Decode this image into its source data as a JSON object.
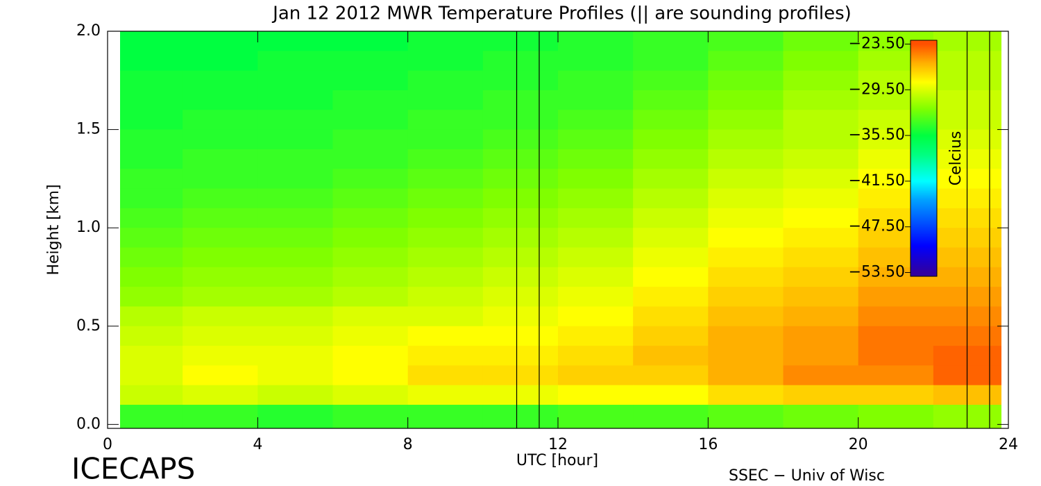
{
  "chart_data": {
    "type": "heatmap",
    "title": "Jan 12 2012 MWR Temperature Profiles (|| are sounding profiles)",
    "x_label": "UTC [hour]",
    "y_label": "Height [km]",
    "colorbar_label": "Celcius",
    "footer_left": "ICECAPS",
    "footer_right": "SSEC − Univ of Wisc",
    "xlim": [
      0,
      24
    ],
    "xticks": [
      0,
      4,
      8,
      12,
      16,
      20,
      24
    ],
    "ylim": [
      -0.02,
      2.0
    ],
    "yticks": [
      {
        "value": 0,
        "label": "0.0"
      },
      {
        "value": 0.5,
        "label": "0.5"
      },
      {
        "value": 1,
        "label": "1.0"
      },
      {
        "value": 1.5,
        "label": "1.5"
      },
      {
        "value": 2,
        "label": "2.0"
      }
    ],
    "clim": [
      -54,
      -23
    ],
    "cticks": [
      {
        "value": -23.5,
        "label": "−23.50"
      },
      {
        "value": -29.5,
        "label": "−29.50"
      },
      {
        "value": -35.5,
        "label": "−35.50"
      },
      {
        "value": -41.5,
        "label": "−41.50"
      },
      {
        "value": -47.5,
        "label": "−47.50"
      },
      {
        "value": -53.5,
        "label": "−53.50"
      }
    ],
    "colormap": [
      [
        -53.5,
        "#3000a0"
      ],
      [
        -50,
        "#0000ff"
      ],
      [
        -44,
        "#00a0ff"
      ],
      [
        -41.5,
        "#00ffff"
      ],
      [
        -38,
        "#00ff80"
      ],
      [
        -35.5,
        "#00ff40"
      ],
      [
        -32,
        "#80ff00"
      ],
      [
        -28.5,
        "#ffff00"
      ],
      [
        -26,
        "#ffb000"
      ],
      [
        -23.5,
        "#ff5000"
      ]
    ],
    "sounding_times": [
      10.9,
      11.5,
      22.9,
      23.5
    ],
    "x": [
      1,
      3,
      5,
      7,
      9,
      11,
      13,
      15,
      17,
      19,
      21,
      23
    ],
    "y": [
      1.95,
      1.85,
      1.75,
      1.65,
      1.55,
      1.45,
      1.35,
      1.25,
      1.15,
      1.05,
      0.95,
      0.85,
      0.75,
      0.65,
      0.55,
      0.45,
      0.35,
      0.25,
      0.15,
      0.05
    ],
    "z": [
      [
        -35.5,
        -35.5,
        -35.5,
        -35.5,
        -35,
        -35,
        -34.5,
        -34,
        -33.5,
        -32.5,
        -31.5,
        -31
      ],
      [
        -35.5,
        -35.5,
        -35,
        -35,
        -35,
        -34.5,
        -34.5,
        -34,
        -33,
        -32,
        -31,
        -30.5
      ],
      [
        -35,
        -35,
        -35,
        -35,
        -34.5,
        -34.5,
        -34,
        -33.5,
        -32.5,
        -31.5,
        -30.5,
        -30.5
      ],
      [
        -35,
        -35,
        -35,
        -34.5,
        -34.5,
        -34,
        -34,
        -33,
        -32,
        -31,
        -30.5,
        -30
      ],
      [
        -35,
        -34.5,
        -34.5,
        -34.5,
        -34,
        -34,
        -33.5,
        -32.5,
        -31.5,
        -30.5,
        -30,
        -30
      ],
      [
        -34.5,
        -34.5,
        -34.5,
        -34,
        -34,
        -33.5,
        -33,
        -32,
        -31,
        -30.5,
        -29.5,
        -29.5
      ],
      [
        -34.5,
        -34,
        -34,
        -34,
        -33.5,
        -33,
        -32.5,
        -31.5,
        -30.5,
        -30,
        -29,
        -29
      ],
      [
        -34,
        -34,
        -34,
        -33.5,
        -33,
        -32.5,
        -32,
        -31,
        -30,
        -29.5,
        -28.5,
        -28.5
      ],
      [
        -34,
        -33.5,
        -33.5,
        -33,
        -32.5,
        -32,
        -31.5,
        -30.5,
        -29.5,
        -29,
        -28,
        -28
      ],
      [
        -33.5,
        -33,
        -33,
        -32.5,
        -32,
        -31.5,
        -31,
        -30,
        -29,
        -28.5,
        -27.5,
        -27.5
      ],
      [
        -33,
        -32.5,
        -32.5,
        -32,
        -31.5,
        -31,
        -30.5,
        -29.5,
        -28.5,
        -28,
        -27,
        -27
      ],
      [
        -32.5,
        -32,
        -32,
        -31.5,
        -31,
        -30.5,
        -30,
        -29,
        -28,
        -27.5,
        -26.5,
        -26.5
      ],
      [
        -32,
        -31.5,
        -31.5,
        -31,
        -30.5,
        -30,
        -29.5,
        -28.5,
        -27.5,
        -27,
        -26,
        -26
      ],
      [
        -31.5,
        -31,
        -31,
        -30.5,
        -30,
        -29.5,
        -29,
        -28,
        -27,
        -26.5,
        -25.5,
        -25.5
      ],
      [
        -30.5,
        -30,
        -30,
        -29.5,
        -29.5,
        -29,
        -28.5,
        -27.5,
        -26.5,
        -26,
        -25,
        -25
      ],
      [
        -30,
        -29.5,
        -29.5,
        -29,
        -28.5,
        -28.5,
        -28,
        -27,
        -26,
        -25.5,
        -24.5,
        -24.5
      ],
      [
        -29.5,
        -29,
        -29,
        -28.5,
        -28,
        -28,
        -27.5,
        -26.5,
        -26,
        -25.5,
        -24.5,
        -24
      ],
      [
        -29.5,
        -28.5,
        -29,
        -28.5,
        -27.5,
        -27.5,
        -27,
        -27,
        -26,
        -25,
        -25,
        -24
      ],
      [
        -30,
        -29.5,
        -30,
        -29.5,
        -29,
        -29,
        -28.5,
        -28.5,
        -27.5,
        -27,
        -27,
        -26.5
      ],
      [
        -34,
        -34,
        -34.5,
        -34,
        -34,
        -34,
        -33.5,
        -33.5,
        -33,
        -32.5,
        -32,
        -31.5
      ]
    ]
  }
}
